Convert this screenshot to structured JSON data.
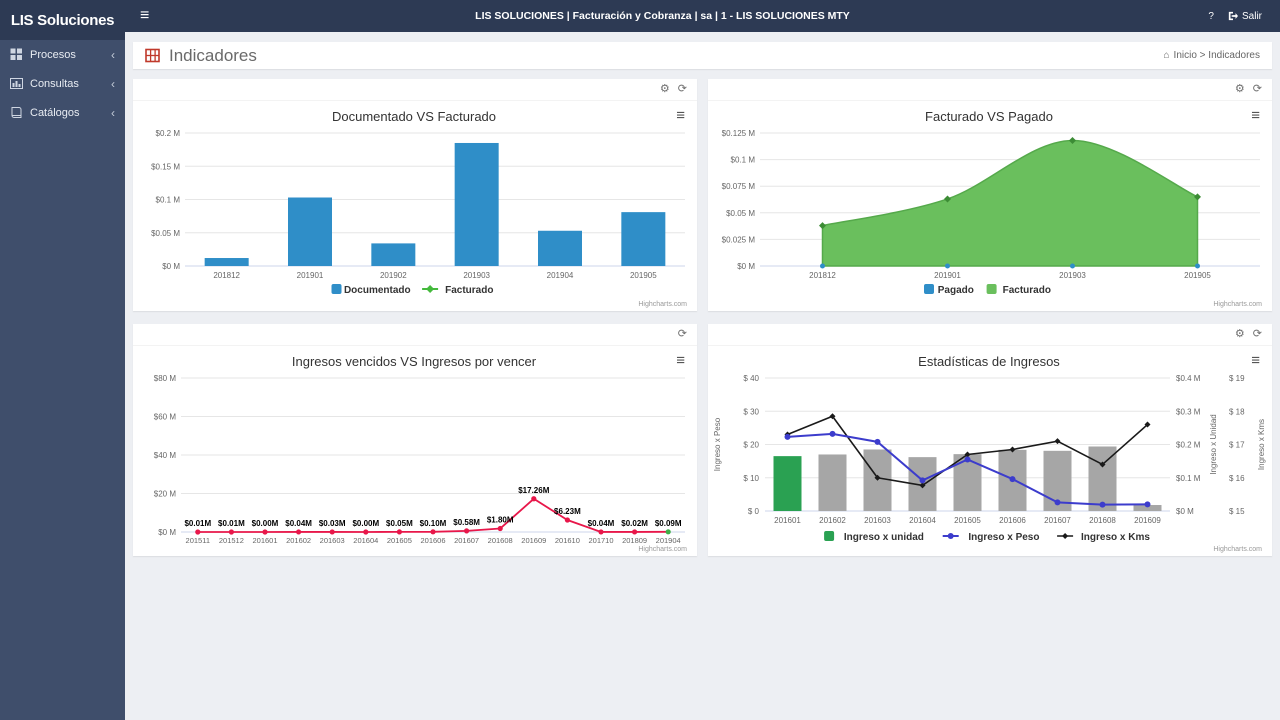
{
  "navbar": {
    "brand": "LIS Soluciones",
    "center": "LIS SOLUCIONES  |  Facturación y Cobranza  |  sa  |  1 - LIS SOLUCIONES MTY",
    "help": "?",
    "logout": "Salir"
  },
  "sidebar": {
    "items": [
      {
        "label": "Procesos"
      },
      {
        "label": "Consultas"
      },
      {
        "label": "Catálogos"
      }
    ]
  },
  "page": {
    "title": "Indicadores",
    "breadcrumb": "Inicio > Indicadores"
  },
  "icons": {
    "menu": "≡",
    "gear": "⚙",
    "refresh": "⟳",
    "context_menu": "≡",
    "home": "⌂",
    "chevron": "‹"
  },
  "credits": "Highcharts.com",
  "colors": {
    "navbar_bg": "#2d3a54",
    "sidebar_bg": "#3f4e6b",
    "content_bg": "#edeff3",
    "bar_blue": "#2f8ec8",
    "area_green": "#6abf5d",
    "line_red": "#e8174a",
    "bar_gray": "#a6a6a6",
    "bar_green": "#2aa152",
    "line_blue": "#3c3ccc",
    "line_black": "#1a1a1a"
  },
  "chart_data": [
    {
      "type": "bar",
      "title": "Documentado VS Facturado",
      "categories": [
        "201812",
        "201901",
        "201902",
        "201903",
        "201904",
        "201905"
      ],
      "series": [
        {
          "name": "Documentado",
          "color": "#2f8ec8",
          "legend_marker": "square",
          "values": [
            0.012,
            0.103,
            0.034,
            0.185,
            0.053,
            0.081
          ]
        },
        {
          "name": "Facturado",
          "color": "#44b93c",
          "legend_marker": "diamond-line",
          "values": []
        }
      ],
      "ylim": [
        0,
        0.2
      ],
      "yticks": [
        0,
        0.05,
        0.1,
        0.15,
        0.2
      ],
      "ytick_labels": [
        "$0 M",
        "$0.05 M",
        "$0.1 M",
        "$0.15 M",
        "$0.2 M"
      ],
      "xlabel": "",
      "ylabel": "",
      "grid": true,
      "legend_position": "bottom"
    },
    {
      "type": "area",
      "title": "Facturado VS Pagado",
      "categories": [
        "201812",
        "201901",
        "201903",
        "201905"
      ],
      "series": [
        {
          "name": "Pagado",
          "color": "#2f8ec8",
          "legend_marker": "square",
          "values": [
            0,
            0,
            0,
            0
          ]
        },
        {
          "name": "Facturado",
          "color": "#6abf5d",
          "legend_marker": "square",
          "values": [
            0.038,
            0.063,
            0.118,
            0.065
          ]
        }
      ],
      "ylim": [
        0,
        0.125
      ],
      "yticks": [
        0,
        0.025,
        0.05,
        0.075,
        0.1,
        0.125
      ],
      "ytick_labels": [
        "$0 M",
        "$0.025 M",
        "$0.05 M",
        "$0.075 M",
        "$0.1 M",
        "$0.125 M"
      ],
      "xlabel": "",
      "ylabel": "",
      "grid": true,
      "legend_position": "bottom"
    },
    {
      "type": "line",
      "title": "Ingresos vencidos VS Ingresos por vencer",
      "categories": [
        "201511",
        "201512",
        "201601",
        "201602",
        "201603",
        "201604",
        "201605",
        "201606",
        "201607",
        "201608",
        "201609",
        "201610",
        "201710",
        "201809",
        "201904"
      ],
      "series": [
        {
          "name": "Ingresos vencidos",
          "color": "#e8174a",
          "last_marker_color": "#3fae49",
          "values": [
            0.01,
            0.01,
            0.0,
            0.04,
            0.03,
            0.0,
            0.05,
            0.1,
            0.58,
            1.8,
            17.26,
            6.23,
            0.04,
            0.02,
            0.09
          ],
          "data_labels": [
            "$0.01M",
            "$0.01M",
            "$0.00M",
            "$0.04M",
            "$0.03M",
            "$0.00M",
            "$0.05M",
            "$0.10M",
            "$0.58M",
            "$1.80M",
            "$17.26M",
            "$6.23M",
            "$0.04M",
            "$0.02M",
            "$0.09M"
          ]
        }
      ],
      "ylim": [
        0,
        80
      ],
      "yticks": [
        0,
        20,
        40,
        60,
        80
      ],
      "ytick_labels": [
        "$0 M",
        "$20 M",
        "$40 M",
        "$60 M",
        "$80 M"
      ],
      "xlabel": "",
      "ylabel": "",
      "grid": true,
      "legend_position": "none"
    },
    {
      "type": "combo",
      "title": "Estadísticas de Ingresos",
      "categories": [
        "201601",
        "201602",
        "201603",
        "201604",
        "201605",
        "201606",
        "201607",
        "201608",
        "201609"
      ],
      "axes": {
        "left": {
          "title": "Ingreso x Peso",
          "range": [
            0,
            40
          ],
          "tick_labels": [
            "$ 0",
            "$ 10",
            "$ 20",
            "$ 30",
            "$ 40"
          ]
        },
        "right1": {
          "title": "Ingreso x Unidad",
          "range": [
            0,
            0.4
          ],
          "tick_labels": [
            "$0 M",
            "$0.1 M",
            "$0.2 M",
            "$0.3 M",
            "$0.4 M"
          ]
        },
        "right2": {
          "title": "Ingreso x Kms",
          "range": [
            15,
            19
          ],
          "tick_labels": [
            "$ 15",
            "$ 16",
            "$ 17",
            "$ 18",
            "$ 19"
          ]
        }
      },
      "series": [
        {
          "name": "Ingreso x unidad",
          "type": "bar",
          "axis": "right1",
          "color": "#2aa152",
          "other_bars_color": "#a6a6a6",
          "legend_marker": "square",
          "values": [
            0.165,
            0.17,
            0.185,
            0.162,
            0.171,
            0.184,
            0.181,
            0.194,
            0.018
          ]
        },
        {
          "name": "Ingreso x Peso",
          "type": "line",
          "axis": "left",
          "color": "#3c3ccc",
          "legend_marker": "line-dot",
          "values": [
            22.3,
            23.2,
            20.8,
            9.2,
            15.5,
            9.6,
            2.6,
            1.9,
            2.0
          ]
        },
        {
          "name": "Ingreso x Kms",
          "type": "line",
          "axis": "right2",
          "color": "#1a1a1a",
          "legend_marker": "line-diamond",
          "values": [
            17.3,
            17.85,
            16.0,
            15.77,
            16.7,
            16.85,
            17.1,
            16.4,
            17.6
          ]
        }
      ],
      "grid": true,
      "legend_position": "bottom"
    }
  ]
}
